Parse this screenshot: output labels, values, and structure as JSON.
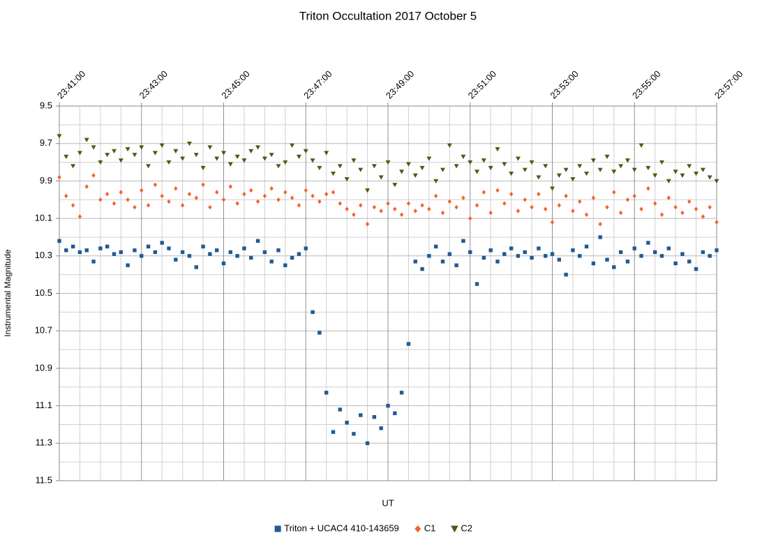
{
  "chart_data": {
    "type": "scatter",
    "title": "Triton Occultation 2017 October 5",
    "x_label": "UT",
    "y_label": "Instrumental  Magnitude",
    "xlim": [
      "23:41:00",
      "23:57:00"
    ],
    "xticks": [
      "23:41:00",
      "23:43:00",
      "23:45:00",
      "23:47:00",
      "23:49:00",
      "23:51:00",
      "23:53:00",
      "23:55:00",
      "23:57:00"
    ],
    "ylim": [
      9.5,
      11.5
    ],
    "y_reversed": true,
    "yticks": [
      9.5,
      9.7,
      9.9,
      10.1,
      10.3,
      10.5,
      10.7,
      10.9,
      11.1,
      11.3,
      11.5
    ],
    "grid": true,
    "legend": "bottom",
    "x": [
      "23:41:00",
      "23:41:10",
      "23:41:20",
      "23:41:30",
      "23:41:40",
      "23:41:50",
      "23:42:00",
      "23:42:10",
      "23:42:20",
      "23:42:30",
      "23:42:40",
      "23:42:50",
      "23:43:00",
      "23:43:10",
      "23:43:20",
      "23:43:30",
      "23:43:40",
      "23:43:50",
      "23:44:00",
      "23:44:10",
      "23:44:20",
      "23:44:30",
      "23:44:40",
      "23:44:50",
      "23:45:00",
      "23:45:10",
      "23:45:20",
      "23:45:30",
      "23:45:40",
      "23:45:50",
      "23:46:00",
      "23:46:10",
      "23:46:20",
      "23:46:30",
      "23:46:40",
      "23:46:50",
      "23:47:00",
      "23:47:10",
      "23:47:20",
      "23:47:30",
      "23:47:40",
      "23:47:50",
      "23:48:00",
      "23:48:10",
      "23:48:20",
      "23:48:30",
      "23:48:40",
      "23:48:50",
      "23:49:00",
      "23:49:10",
      "23:49:20",
      "23:49:30",
      "23:49:40",
      "23:49:50",
      "23:50:00",
      "23:50:10",
      "23:50:20",
      "23:50:30",
      "23:50:40",
      "23:50:50",
      "23:51:00",
      "23:51:10",
      "23:51:20",
      "23:51:30",
      "23:51:40",
      "23:51:50",
      "23:52:00",
      "23:52:10",
      "23:52:20",
      "23:52:30",
      "23:52:40",
      "23:52:50",
      "23:53:00",
      "23:53:10",
      "23:53:20",
      "23:53:30",
      "23:53:40",
      "23:53:50",
      "23:54:00",
      "23:54:10",
      "23:54:20",
      "23:54:30",
      "23:54:40",
      "23:54:50",
      "23:55:00",
      "23:55:10",
      "23:55:20",
      "23:55:30",
      "23:55:40",
      "23:55:50",
      "23:56:00",
      "23:56:10",
      "23:56:20",
      "23:56:30",
      "23:56:40",
      "23:56:50",
      "23:57:00"
    ],
    "series": [
      {
        "name": "Triton + UCAC4 410-143659",
        "color": "#1f5a96",
        "marker": "square",
        "values": [
          10.22,
          10.27,
          10.25,
          10.28,
          10.27,
          10.33,
          10.26,
          10.25,
          10.29,
          10.28,
          10.35,
          10.27,
          10.3,
          10.25,
          10.28,
          10.23,
          10.26,
          10.32,
          10.28,
          10.3,
          10.36,
          10.25,
          10.29,
          10.27,
          10.34,
          10.28,
          10.3,
          10.26,
          10.31,
          10.22,
          10.28,
          10.33,
          10.27,
          10.35,
          10.31,
          10.29,
          10.26,
          10.6,
          10.71,
          11.03,
          11.24,
          11.12,
          11.19,
          11.25,
          11.15,
          11.3,
          11.16,
          11.22,
          11.1,
          11.14,
          11.03,
          10.77,
          10.33,
          10.37,
          10.3,
          10.25,
          10.33,
          10.29,
          10.35,
          10.22,
          10.28,
          10.45,
          10.31,
          10.27,
          10.33,
          10.29,
          10.26,
          10.3,
          10.28,
          10.31,
          10.26,
          10.3,
          10.29,
          10.32,
          10.4,
          10.27,
          10.3,
          10.25,
          10.34,
          10.2,
          10.32,
          10.36,
          10.28,
          10.33,
          10.26,
          10.3,
          10.23,
          10.28,
          10.3,
          10.26,
          10.34,
          10.29,
          10.33,
          10.37,
          10.28,
          10.3,
          10.27
        ]
      },
      {
        "name": "C1",
        "color": "#f4622a",
        "marker": "diamond",
        "values": [
          9.88,
          9.98,
          10.03,
          10.09,
          9.93,
          9.87,
          10.0,
          9.97,
          10.02,
          9.96,
          10.0,
          10.04,
          9.95,
          10.03,
          9.92,
          9.98,
          10.01,
          9.94,
          10.03,
          9.97,
          9.99,
          9.92,
          10.04,
          9.96,
          10.0,
          9.93,
          10.02,
          9.97,
          9.95,
          10.01,
          9.98,
          9.94,
          10.0,
          9.96,
          9.99,
          10.03,
          9.95,
          9.98,
          10.01,
          9.97,
          9.96,
          10.02,
          10.05,
          10.08,
          10.03,
          10.13,
          10.04,
          10.06,
          10.02,
          10.05,
          10.08,
          10.02,
          10.06,
          10.03,
          10.05,
          9.98,
          10.07,
          10.01,
          10.04,
          9.99,
          10.1,
          10.03,
          9.96,
          10.07,
          9.95,
          10.02,
          9.97,
          10.06,
          10.0,
          10.04,
          9.97,
          10.05,
          10.12,
          10.03,
          9.98,
          10.06,
          10.01,
          10.08,
          9.99,
          10.13,
          10.04,
          9.96,
          10.07,
          10.0,
          9.98,
          10.05,
          9.94,
          10.02,
          10.08,
          9.99,
          10.04,
          10.07,
          10.01,
          10.05,
          10.09,
          10.04,
          10.12
        ]
      },
      {
        "name": "C2",
        "color": "#4d5a12",
        "marker": "triangle-down",
        "values": [
          9.66,
          9.77,
          9.82,
          9.75,
          9.68,
          9.72,
          9.8,
          9.76,
          9.74,
          9.79,
          9.73,
          9.76,
          9.72,
          9.82,
          9.75,
          9.71,
          9.8,
          9.74,
          9.78,
          9.7,
          9.76,
          9.83,
          9.72,
          9.78,
          9.75,
          9.81,
          9.77,
          9.79,
          9.74,
          9.72,
          9.78,
          9.76,
          9.82,
          9.8,
          9.71,
          9.77,
          9.74,
          9.79,
          9.83,
          9.75,
          9.86,
          9.82,
          9.89,
          9.79,
          9.84,
          9.95,
          9.82,
          9.88,
          9.8,
          9.92,
          9.85,
          9.81,
          9.87,
          9.83,
          9.78,
          9.9,
          9.84,
          9.71,
          9.82,
          9.77,
          9.8,
          9.85,
          9.79,
          9.83,
          9.73,
          9.81,
          9.86,
          9.78,
          9.84,
          9.8,
          9.88,
          9.82,
          9.94,
          9.87,
          9.84,
          9.89,
          9.82,
          9.86,
          9.79,
          9.84,
          9.77,
          9.85,
          9.82,
          9.79,
          9.84,
          9.71,
          9.83,
          9.87,
          9.8,
          9.9,
          9.85,
          9.87,
          9.82,
          9.86,
          9.84,
          9.88,
          9.9
        ]
      }
    ]
  }
}
